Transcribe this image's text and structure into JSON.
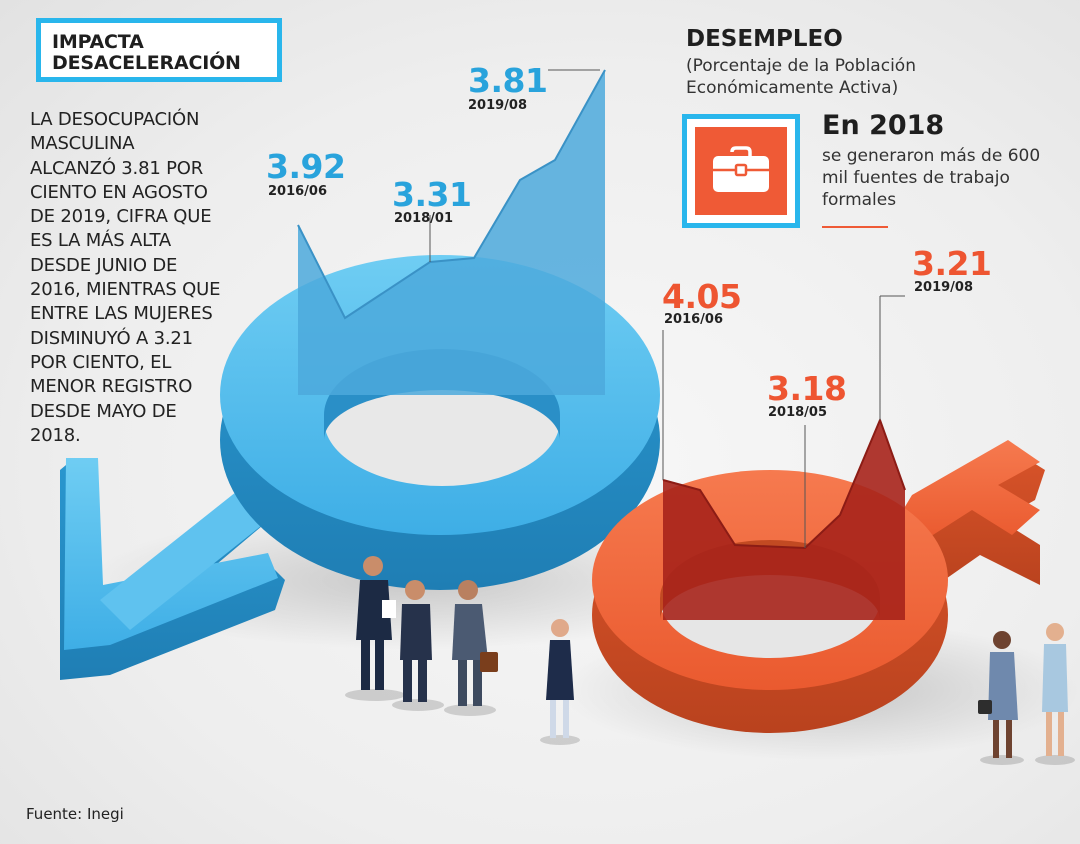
{
  "title": {
    "line1": "IMPACTA",
    "line2": "DESACELERACIÓN"
  },
  "body": [
    "LA DESOCUPACIÓN",
    "MASCULINA",
    "ALCANZÓ 3.81 POR",
    "CIENTO EN AGOSTO",
    "DE 2019, CIFRA QUE",
    "ES LA MÁS ALTA",
    "DESDE JUNIO DE",
    "2016, MIENTRAS QUE",
    "ENTRE LAS MUJERES",
    "DISMINUYÓ A 3.21",
    "POR CIENTO, EL",
    "MENOR REGISTRO",
    "DESDE MAYO DE",
    "2018."
  ],
  "desempleo": {
    "heading": "DESEMPLEO",
    "sub1": "(Porcentaje de la Población",
    "sub2": "Económicamente Activa)"
  },
  "highlight": {
    "heading": "En 2018",
    "lines": [
      "se generaron más de 600",
      "mil fuentes de trabajo",
      "formales"
    ],
    "icon": "briefcase-icon"
  },
  "men": {
    "color": "#29a3dc",
    "points": [
      {
        "value": "3.92",
        "date": "2016/06"
      },
      {
        "value": "3.31",
        "date": "2018/01"
      },
      {
        "value": "3.81",
        "date": "2019/08"
      }
    ]
  },
  "women": {
    "color": "#ee5531",
    "points": [
      {
        "value": "4.05",
        "date": "2016/06"
      },
      {
        "value": "3.18",
        "date": "2018/05"
      },
      {
        "value": "3.21",
        "date": "2019/08"
      }
    ]
  },
  "source": "Fuente: Inegi"
}
